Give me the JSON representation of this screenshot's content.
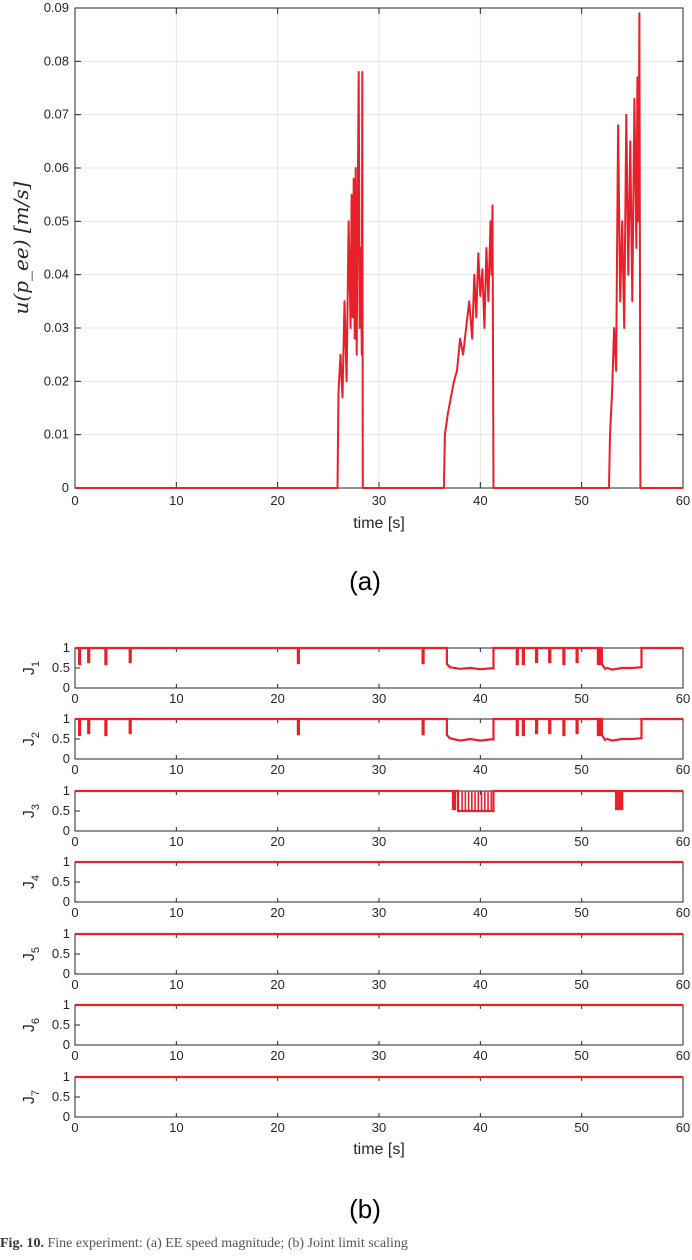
{
  "panels": {
    "a_label": "(a)",
    "b_label": "(b)"
  },
  "caption": {
    "fig_prefix": "Fig. 10.",
    "text": "Fine experiment: (a) EE speed magnitude; (b) Joint limit scaling"
  },
  "chart_data": [
    {
      "type": "line",
      "title": "",
      "xlabel": "time [s]",
      "ylabel": "u(p_ee) [m/s]",
      "xlim": [
        0,
        60
      ],
      "ylim": [
        0,
        0.09
      ],
      "xticks": [
        0,
        10,
        20,
        30,
        40,
        50,
        60
      ],
      "yticks": [
        0,
        0.01,
        0.02,
        0.03,
        0.04,
        0.05,
        0.06,
        0.07,
        0.08,
        0.09
      ],
      "ytick_labels": [
        "0",
        "0.01",
        "0.02",
        "0.03",
        "0.04",
        "0.05",
        "0.06",
        "0.07",
        "0.08",
        "0.09"
      ],
      "grid": true,
      "color": "#e8202a",
      "series": [
        {
          "x": [
            0,
            25.9,
            26.0,
            26.2,
            26.4,
            26.6,
            26.8,
            27.0,
            27.2,
            27.3,
            27.4,
            27.5,
            27.6,
            27.7,
            27.8,
            27.9,
            28.0,
            28.1,
            28.2,
            28.3,
            28.35,
            28.4,
            36.4,
            36.5,
            36.8,
            37.1,
            37.4,
            37.7,
            38.0,
            38.3,
            38.6,
            38.9,
            39.2,
            39.4,
            39.6,
            39.8,
            40.0,
            40.2,
            40.4,
            40.6,
            40.8,
            41.0,
            41.1,
            41.2,
            41.3,
            52.7,
            52.8,
            53.0,
            53.2,
            53.4,
            53.6,
            53.8,
            54.0,
            54.2,
            54.4,
            54.6,
            54.8,
            55.0,
            55.2,
            55.4,
            55.5,
            55.6,
            55.7,
            55.8,
            60
          ],
          "y": [
            0,
            0,
            0.018,
            0.025,
            0.017,
            0.035,
            0.02,
            0.05,
            0.03,
            0.055,
            0.032,
            0.058,
            0.028,
            0.06,
            0.025,
            0.052,
            0.078,
            0.03,
            0.045,
            0.025,
            0.078,
            0,
            0,
            0.01,
            0.014,
            0.017,
            0.02,
            0.022,
            0.028,
            0.025,
            0.03,
            0.035,
            0.028,
            0.04,
            0.032,
            0.044,
            0.036,
            0.041,
            0.03,
            0.045,
            0.035,
            0.05,
            0.04,
            0.053,
            0,
            0,
            0.01,
            0.018,
            0.03,
            0.022,
            0.068,
            0.035,
            0.05,
            0.03,
            0.07,
            0.04,
            0.065,
            0.035,
            0.073,
            0.045,
            0.077,
            0.05,
            0.089,
            0,
            0
          ]
        }
      ]
    },
    {
      "type": "line",
      "title": "",
      "xlabel": "time [s]",
      "xlim": [
        0,
        60
      ],
      "xticks": [
        0,
        10,
        20,
        30,
        40,
        50,
        60
      ],
      "ylim": [
        0,
        1
      ],
      "yticks": [
        0,
        0.5,
        1
      ],
      "ytick_labels": [
        "0",
        "0.5",
        "1"
      ],
      "color": "#e8202a",
      "subplots": [
        {
          "ylabel": "J",
          "ysub": "1",
          "x": [
            0,
            0.4,
            0.4,
            0.5,
            0.5,
            1.3,
            1.3,
            1.4,
            1.4,
            3.0,
            3.0,
            3.1,
            3.1,
            5.4,
            5.4,
            5.5,
            5.5,
            22.0,
            22.0,
            22.1,
            22.1,
            34.3,
            34.3,
            34.4,
            34.4,
            36.7,
            36.7,
            37.0,
            38.0,
            39.0,
            40.0,
            41.0,
            41.3,
            41.3,
            43.6,
            43.6,
            43.7,
            43.7,
            44.2,
            44.2,
            44.3,
            44.3,
            45.5,
            45.5,
            45.6,
            45.6,
            46.8,
            46.8,
            46.9,
            46.9,
            48.2,
            48.2,
            48.3,
            48.3,
            49.5,
            49.5,
            49.6,
            49.6,
            51.6,
            51.6,
            51.8,
            51.8,
            52.0,
            52.0,
            52.3,
            52.5,
            53.0,
            54.0,
            55.0,
            55.9,
            55.9,
            60
          ],
          "y": [
            1,
            1,
            0.6,
            0.6,
            1,
            1,
            0.65,
            0.65,
            1,
            1,
            0.6,
            0.6,
            1,
            1,
            0.65,
            0.65,
            1,
            1,
            0.62,
            0.62,
            1,
            1,
            0.62,
            0.62,
            1,
            1,
            0.6,
            0.52,
            0.48,
            0.5,
            0.47,
            0.49,
            0.49,
            1,
            1,
            0.6,
            0.6,
            1,
            1,
            0.6,
            0.6,
            1,
            1,
            0.65,
            0.65,
            1,
            1,
            0.65,
            0.65,
            1,
            1,
            0.6,
            0.6,
            1,
            1,
            0.65,
            0.65,
            1,
            1,
            0.6,
            0.6,
            1,
            1,
            0.6,
            0.48,
            0.5,
            0.46,
            0.5,
            0.5,
            0.52,
            1,
            1
          ]
        },
        {
          "ylabel": "J",
          "ysub": "2",
          "x": [
            0,
            0.4,
            0.4,
            0.5,
            0.5,
            1.3,
            1.3,
            1.4,
            1.4,
            3.0,
            3.0,
            3.1,
            3.1,
            5.4,
            5.4,
            5.5,
            5.5,
            22.0,
            22.0,
            22.1,
            22.1,
            34.3,
            34.3,
            34.4,
            34.4,
            36.7,
            36.7,
            37.0,
            38.0,
            39.0,
            40.0,
            41.0,
            41.3,
            41.3,
            43.6,
            43.6,
            43.7,
            43.7,
            44.2,
            44.2,
            44.3,
            44.3,
            45.5,
            45.5,
            45.6,
            45.6,
            46.8,
            46.8,
            46.9,
            46.9,
            48.2,
            48.2,
            48.3,
            48.3,
            49.5,
            49.5,
            49.6,
            49.6,
            51.6,
            51.6,
            51.8,
            51.8,
            52.0,
            52.0,
            52.3,
            52.5,
            53.0,
            54.0,
            55.0,
            55.9,
            55.9,
            60
          ],
          "y": [
            1,
            1,
            0.6,
            0.6,
            1,
            1,
            0.65,
            0.65,
            1,
            1,
            0.6,
            0.6,
            1,
            1,
            0.65,
            0.65,
            1,
            1,
            0.62,
            0.62,
            1,
            1,
            0.62,
            0.62,
            1,
            1,
            0.6,
            0.52,
            0.46,
            0.5,
            0.46,
            0.49,
            0.49,
            1,
            1,
            0.6,
            0.6,
            1,
            1,
            0.6,
            0.6,
            1,
            1,
            0.65,
            0.65,
            1,
            1,
            0.65,
            0.65,
            1,
            1,
            0.6,
            0.6,
            1,
            1,
            0.65,
            0.65,
            1,
            1,
            0.6,
            0.6,
            1,
            1,
            0.6,
            0.48,
            0.5,
            0.46,
            0.5,
            0.5,
            0.52,
            1,
            1
          ]
        },
        {
          "ylabel": "J",
          "ysub": "3",
          "x": [
            0,
            37.3,
            37.3,
            37.5,
            37.5,
            37.8,
            37.8,
            41.3,
            41.3,
            53.4,
            53.4,
            53.6,
            53.6,
            53.8,
            53.8,
            54.0,
            54.0,
            60
          ],
          "y": [
            1,
            1,
            0.55,
            0.55,
            1,
            1,
            0.5,
            0.5,
            1,
            1,
            0.55,
            0.55,
            1,
            1,
            0.55,
            0.55,
            1,
            1
          ],
          "burst": [
            38.2,
            41.2
          ]
        },
        {
          "ylabel": "J",
          "ysub": "4",
          "x": [
            0,
            60
          ],
          "y": [
            1,
            1
          ]
        },
        {
          "ylabel": "J",
          "ysub": "5",
          "x": [
            0,
            60
          ],
          "y": [
            1,
            1
          ]
        },
        {
          "ylabel": "J",
          "ysub": "6",
          "x": [
            0,
            60
          ],
          "y": [
            1,
            1
          ]
        },
        {
          "ylabel": "J",
          "ysub": "7",
          "x": [
            0,
            60
          ],
          "y": [
            1,
            1
          ]
        }
      ]
    }
  ]
}
